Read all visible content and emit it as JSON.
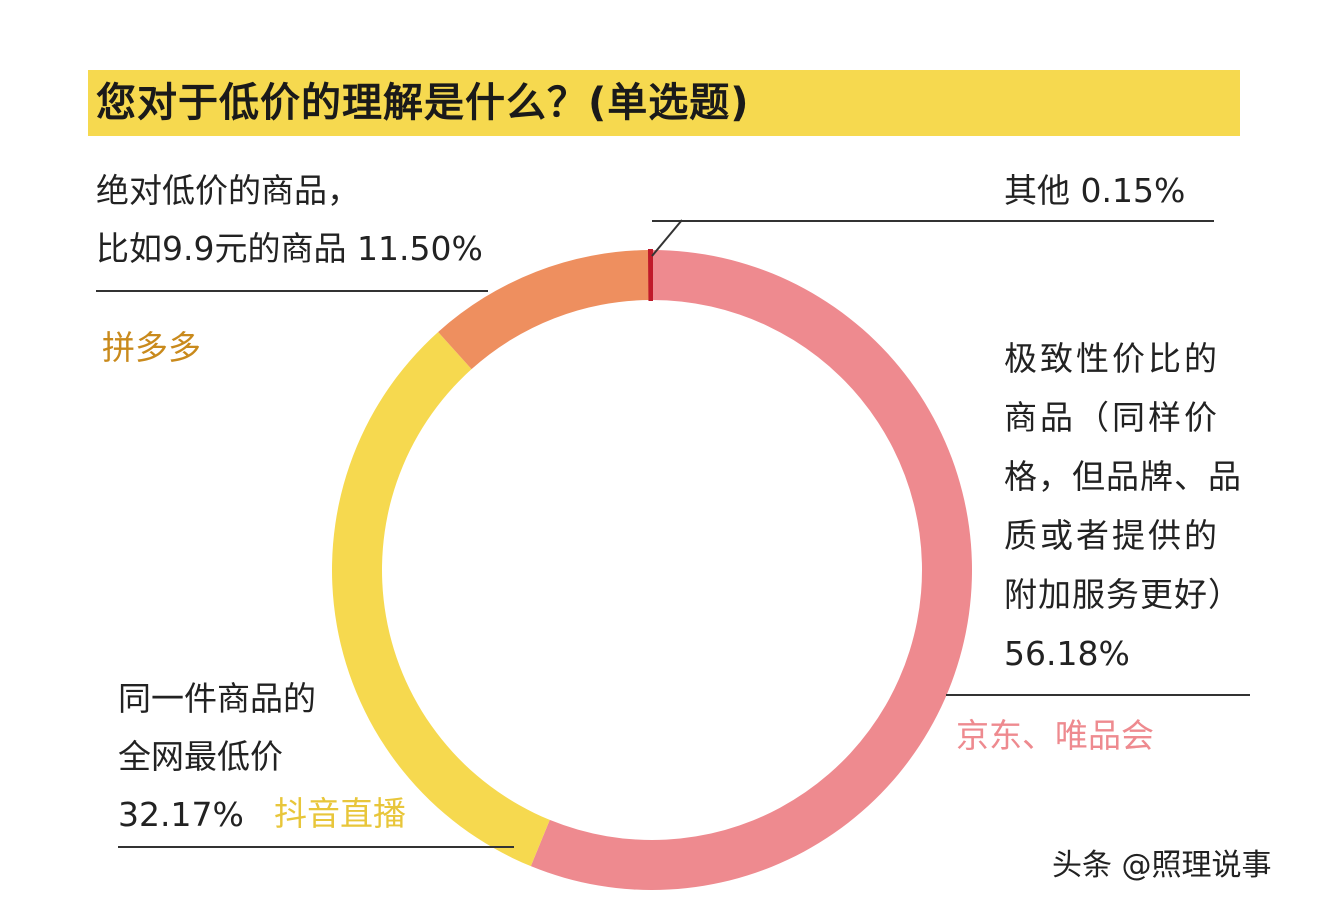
{
  "title": "您对于低价的理解是什么？(单选题)",
  "watermark": "头条 @照理说事",
  "colors": {
    "title_bar": "#f6d94f",
    "slice_best_value": "#ee8a8f",
    "slice_lowest": "#f6d94f",
    "slice_absolute_low": "#ee8f5f",
    "slice_other": "#c01a2a",
    "platform_pdd": "#c98a1c",
    "platform_jd": "#ee8a8f",
    "platform_douyin": "#e8c63a"
  },
  "labels": {
    "absolute_low": {
      "line1": "绝对低价的商品，",
      "line2": "比如9.9元的商品  11.50%",
      "platform": "拼多多"
    },
    "other": {
      "line1": "其他  0.15%"
    },
    "best_value": {
      "lines": [
        "极致性价比的",
        "商品（同样价",
        "格，但品牌、品",
        "质或者提供的",
        "附加服务更好）",
        "56.18%"
      ],
      "platform": "京东、唯品会"
    },
    "lowest": {
      "line1": "同一件商品的",
      "line2": "全网最低价",
      "line3": "32.17%",
      "platform": "抖音直播"
    }
  },
  "chart_data": {
    "type": "pie",
    "title": "您对于低价的理解是什么？(单选题)",
    "donut": true,
    "slices": [
      {
        "label": "极致性价比的商品（同样价格，但品牌、品质或者提供的附加服务更好）",
        "value": 56.18,
        "color": "#ee8a8f",
        "platform": "京东、唯品会"
      },
      {
        "label": "同一件商品的全网最低价",
        "value": 32.17,
        "color": "#f6d94f",
        "platform": "抖音直播"
      },
      {
        "label": "绝对低价的商品，比如9.9元的商品",
        "value": 11.5,
        "color": "#ee8f5f",
        "platform": "拼多多"
      },
      {
        "label": "其他",
        "value": 0.15,
        "color": "#c01a2a"
      }
    ]
  }
}
